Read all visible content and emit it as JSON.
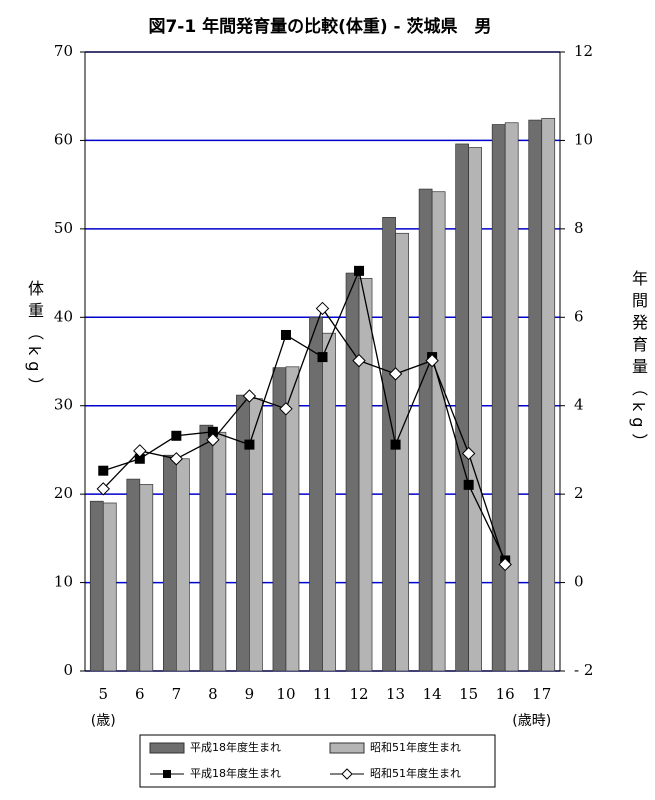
{
  "chart_data": {
    "type": "bar_line",
    "title": "図7-1 年間発育量の比較(体重) - 茨城県　男",
    "ylabel": "体重（kg）",
    "y2label": "年間発育量（kg）",
    "categories": [
      "5",
      "6",
      "7",
      "8",
      "9",
      "10",
      "11",
      "12",
      "13",
      "14",
      "15",
      "16",
      "17"
    ],
    "annotations": [
      "(歳)",
      "(歳時)"
    ],
    "ylim": [
      0,
      70
    ],
    "yticks": [
      0,
      10,
      20,
      30,
      40,
      50,
      60,
      70
    ],
    "y2lim": [
      -2,
      12
    ],
    "y2ticks": [
      {
        "value": -2,
        "label": "- 2"
      },
      0,
      2,
      4,
      6,
      8,
      10,
      12
    ],
    "grid": true,
    "grid_color": "#0000cc",
    "series": [
      {
        "name": "平成18年度生まれ",
        "kind": "bar",
        "color": "#6e6e6e",
        "values": [
          19.2,
          21.7,
          24.4,
          27.8,
          31.2,
          34.3,
          40.0,
          45.0,
          51.3,
          54.5,
          59.6,
          61.8,
          62.3
        ]
      },
      {
        "name": "昭和51年度生まれ",
        "kind": "bar",
        "color": "#b4b4b4",
        "values": [
          19.0,
          21.1,
          24.0,
          27.0,
          30.8,
          34.4,
          38.2,
          44.4,
          49.5,
          54.2,
          59.2,
          62.0,
          62.5
        ]
      },
      {
        "name": "平成18年度生まれ",
        "kind": "line",
        "marker": "square",
        "axis": "y2",
        "color": "#000000",
        "values": [
          2.53,
          2.8,
          3.32,
          3.41,
          3.12,
          5.6,
          5.1,
          7.05,
          3.12,
          5.1,
          2.21,
          0.5,
          null
        ]
      },
      {
        "name": "昭和51年度生まれ",
        "kind": "line",
        "marker": "diamond",
        "axis": "y2",
        "color": "#000000",
        "values": [
          2.12,
          2.98,
          2.8,
          3.23,
          4.22,
          3.93,
          6.2,
          5.02,
          4.72,
          5.02,
          2.92,
          0.41,
          null
        ]
      }
    ],
    "legend": "bottom"
  }
}
